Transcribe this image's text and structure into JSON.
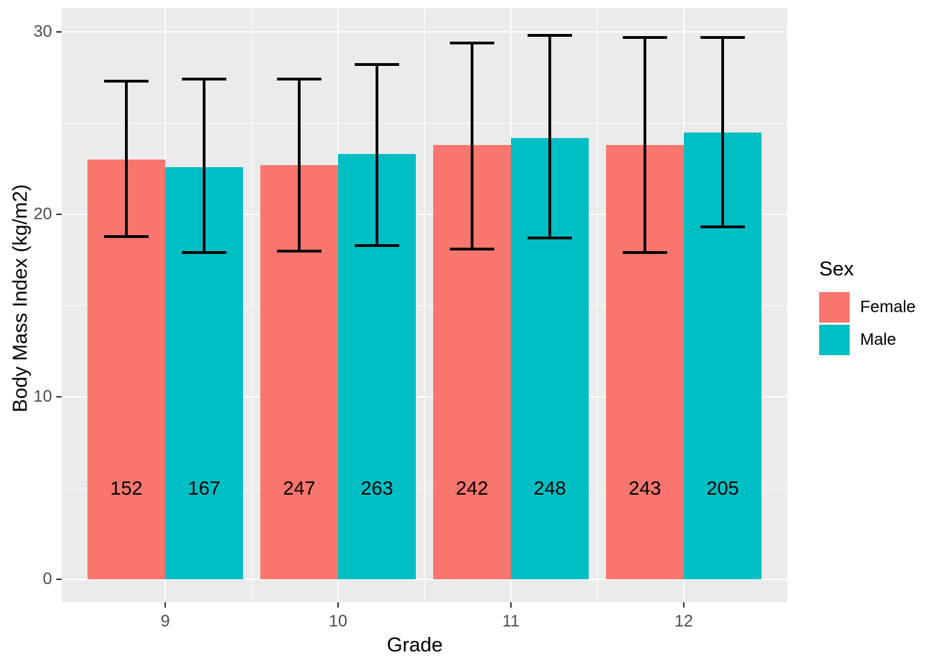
{
  "chart_data": {
    "type": "bar",
    "title": "",
    "xlabel": "Grade",
    "ylabel": "Body Mass Index (kg/m2)",
    "categories": [
      "9",
      "10",
      "11",
      "12"
    ],
    "ylim": [
      0,
      31.3
    ],
    "yticks": [
      0,
      10,
      20,
      30
    ],
    "ytick_labels": [
      "0",
      "10",
      "20",
      "30"
    ],
    "yticks_minor": [
      5,
      15,
      25
    ],
    "grid": "white-on-grey",
    "panel_background": "#EBEBEB",
    "gridline_color": "#FFFFFF",
    "error_bar_color": "#000000",
    "count_label_y": 5,
    "legend": {
      "title": "Sex",
      "position": "right",
      "entries": [
        "Female",
        "Male"
      ]
    },
    "series": [
      {
        "name": "Female",
        "color": "#F8766D",
        "means": [
          23.0,
          22.7,
          23.8,
          23.8
        ],
        "err_low": [
          18.8,
          18.0,
          18.1,
          17.9
        ],
        "err_high": [
          27.3,
          27.4,
          29.4,
          29.7
        ],
        "counts": [
          "152",
          "247",
          "242",
          "243"
        ]
      },
      {
        "name": "Male",
        "color": "#00BFC4",
        "means": [
          22.6,
          23.3,
          24.2,
          24.5
        ],
        "err_low": [
          17.9,
          18.3,
          18.7,
          19.3
        ],
        "err_high": [
          27.4,
          28.2,
          29.8,
          29.7
        ],
        "counts": [
          "167",
          "263",
          "248",
          "205"
        ]
      }
    ]
  }
}
